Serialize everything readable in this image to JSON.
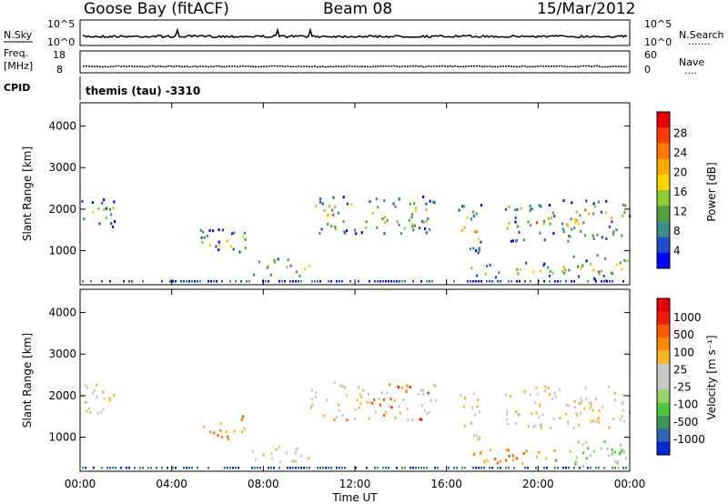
{
  "header": {
    "station": "Goose Bay (fitACF)",
    "beam": "Beam 08",
    "date": "15/Mar/2012"
  },
  "nsky_panel": {
    "left_label": "N.Sky",
    "right_label": "N.Search",
    "right_dots": "·······",
    "left_ticks": [
      "10^5",
      "10^0"
    ],
    "right_ticks": [
      "10^5",
      "10^0"
    ]
  },
  "freq_panel": {
    "left_label_1": "Freq.",
    "left_label_2": "[MHz]",
    "right_label": "Nave",
    "right_dots": "····",
    "left_ticks": [
      "18",
      "8"
    ],
    "right_ticks": [
      "60",
      "0"
    ]
  },
  "cpid": {
    "label": "CPID",
    "text": "themis (tau) -3310"
  },
  "chart_data": [
    {
      "type": "heatmap",
      "quantity": "Power",
      "ylabel": "Slant Range [km]",
      "yticks": [
        "1000",
        "2000",
        "3000",
        "4000"
      ],
      "ylim": [
        180,
        4560
      ],
      "xlim_hours": [
        0,
        24
      ],
      "colorbar_label": "Power [dB]",
      "colorbar_ticks": [
        "4",
        "8",
        "12",
        "16",
        "20",
        "24",
        "28"
      ],
      "colorbar_colors": [
        "#0000ff",
        "#1e4fc8",
        "#3c8c8c",
        "#55a03c",
        "#8ccd32",
        "#ffd200",
        "#ffaa00",
        "#ff7800",
        "#ff3c00",
        "#e60000"
      ],
      "echo_regions": [
        {
          "t0": 0.0,
          "t1": 1.5,
          "r0": 1550,
          "r1": 2250
        },
        {
          "t0": 5.2,
          "t1": 7.2,
          "r0": 900,
          "r1": 1500
        },
        {
          "t0": 7.5,
          "t1": 10.0,
          "r0": 350,
          "r1": 800
        },
        {
          "t0": 10.0,
          "t1": 15.5,
          "r0": 1400,
          "r1": 2300
        },
        {
          "t0": 16.5,
          "t1": 17.5,
          "r0": 900,
          "r1": 2100
        },
        {
          "t0": 17.0,
          "t1": 21.5,
          "r0": 350,
          "r1": 700
        },
        {
          "t0": 18.5,
          "t1": 24.0,
          "r0": 1200,
          "r1": 2200
        },
        {
          "t0": 21.5,
          "t1": 24.0,
          "r0": 250,
          "r1": 900
        }
      ]
    },
    {
      "type": "heatmap",
      "quantity": "Velocity",
      "ylabel": "Slant Range [km]",
      "yticks": [
        "1000",
        "2000",
        "3000",
        "4000"
      ],
      "ylim": [
        180,
        4560
      ],
      "xlim_hours": [
        0,
        24
      ],
      "colorbar_label": "Velocity [m s⁻¹]",
      "colorbar_ticks": [
        "1000",
        "500",
        "100",
        "25",
        "-25",
        "-100",
        "-500",
        "-1000"
      ],
      "colorbar_colors": [
        "#0028d2",
        "#3264b4",
        "#3c965a",
        "#50c83c",
        "#96d264",
        "#c8c8c8",
        "#c8c8c8",
        "#ffb428",
        "#ff8c00",
        "#ff5a00",
        "#f01e00",
        "#e60000"
      ],
      "echo_regions": [
        {
          "t0": 0.0,
          "t1": 1.5,
          "r0": 1550,
          "r1": 2250
        },
        {
          "t0": 5.2,
          "t1": 7.2,
          "r0": 900,
          "r1": 1500
        },
        {
          "t0": 7.5,
          "t1": 10.0,
          "r0": 350,
          "r1": 800
        },
        {
          "t0": 10.0,
          "t1": 15.5,
          "r0": 1400,
          "r1": 2300
        },
        {
          "t0": 16.5,
          "t1": 17.5,
          "r0": 900,
          "r1": 2100
        },
        {
          "t0": 17.0,
          "t1": 21.5,
          "r0": 350,
          "r1": 700
        },
        {
          "t0": 18.5,
          "t1": 24.0,
          "r0": 1200,
          "r1": 2200
        },
        {
          "t0": 21.5,
          "t1": 24.0,
          "r0": 250,
          "r1": 900
        }
      ]
    }
  ],
  "xaxis": {
    "ticks": [
      "00:00",
      "04:00",
      "08:00",
      "12:00",
      "16:00",
      "20:00",
      "00:00"
    ],
    "label": "Time UT"
  }
}
